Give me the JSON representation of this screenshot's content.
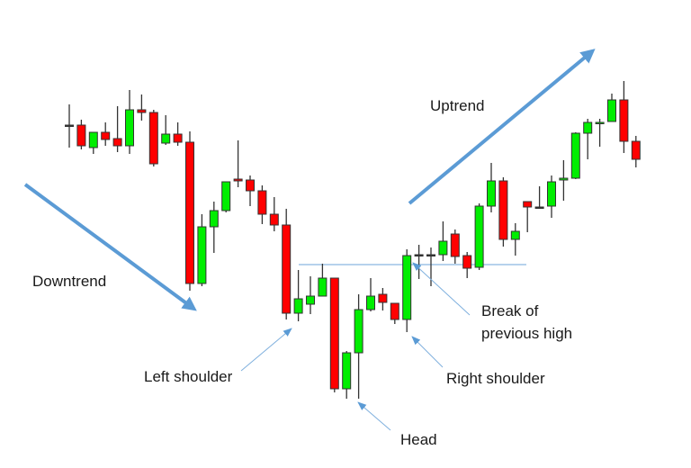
{
  "chart_data": {
    "type": "candlestick",
    "title": "",
    "xlabel": "",
    "ylabel": "",
    "grid": false,
    "colors": {
      "up": "#00ee00",
      "down": "#ff0000",
      "outline": "#333333",
      "annotation": "#5b9bd5"
    },
    "candles_ohlc": [
      [
        341,
        364,
        316,
        341
      ],
      [
        341,
        347,
        314,
        318
      ],
      [
        316,
        333,
        309,
        333
      ],
      [
        333,
        344,
        318,
        325
      ],
      [
        326,
        362,
        311,
        318
      ],
      [
        318,
        380,
        309,
        358
      ],
      [
        358,
        375,
        346,
        355
      ],
      [
        355,
        358,
        295,
        298
      ],
      [
        321,
        352,
        319,
        331
      ],
      [
        331,
        344,
        318,
        322
      ],
      [
        322,
        334,
        157,
        165
      ],
      [
        165,
        242,
        162,
        228
      ],
      [
        228,
        256,
        199,
        246
      ],
      [
        246,
        278,
        244,
        278
      ],
      [
        281,
        324,
        272,
        279
      ],
      [
        280,
        285,
        251,
        268
      ],
      [
        268,
        274,
        231,
        242
      ],
      [
        242,
        261,
        223,
        230
      ],
      [
        230,
        248,
        125,
        132
      ],
      [
        132,
        180,
        123,
        148
      ],
      [
        142,
        173,
        131,
        151
      ],
      [
        151,
        187,
        151,
        171
      ],
      [
        171,
        171,
        44,
        48
      ],
      [
        48,
        90,
        37,
        88
      ],
      [
        88,
        153,
        37,
        136
      ],
      [
        136,
        171,
        134,
        151
      ],
      [
        153,
        160,
        135,
        144
      ],
      [
        143,
        143,
        120,
        125
      ],
      [
        125,
        203,
        111,
        196
      ],
      [
        197,
        208,
        170,
        197
      ],
      [
        197,
        205,
        162,
        197
      ],
      [
        197,
        234,
        190,
        212
      ],
      [
        220,
        225,
        187,
        195
      ],
      [
        196,
        200,
        171,
        182
      ],
      [
        183,
        254,
        180,
        251
      ],
      [
        251,
        299,
        244,
        279
      ],
      [
        279,
        283,
        206,
        214
      ],
      [
        214,
        232,
        196,
        223
      ],
      [
        256,
        256,
        222,
        250
      ],
      [
        250,
        273,
        250,
        250
      ],
      [
        251,
        285,
        238,
        278
      ],
      [
        280,
        302,
        257,
        282
      ],
      [
        282,
        333,
        281,
        332
      ],
      [
        332,
        348,
        303,
        344
      ],
      [
        343,
        348,
        317,
        344
      ],
      [
        345,
        376,
        345,
        369
      ],
      [
        369,
        390,
        310,
        323
      ],
      [
        323,
        329,
        294,
        303
      ]
    ],
    "neckline_level": 186,
    "annotations": {
      "downtrend": "Downtrend",
      "uptrend": "Uptrend",
      "left_shoulder": "Left shoulder",
      "head": "Head",
      "right_shoulder": "Right shoulder",
      "break_line1": "Break of",
      "break_line2": "previous high"
    }
  }
}
